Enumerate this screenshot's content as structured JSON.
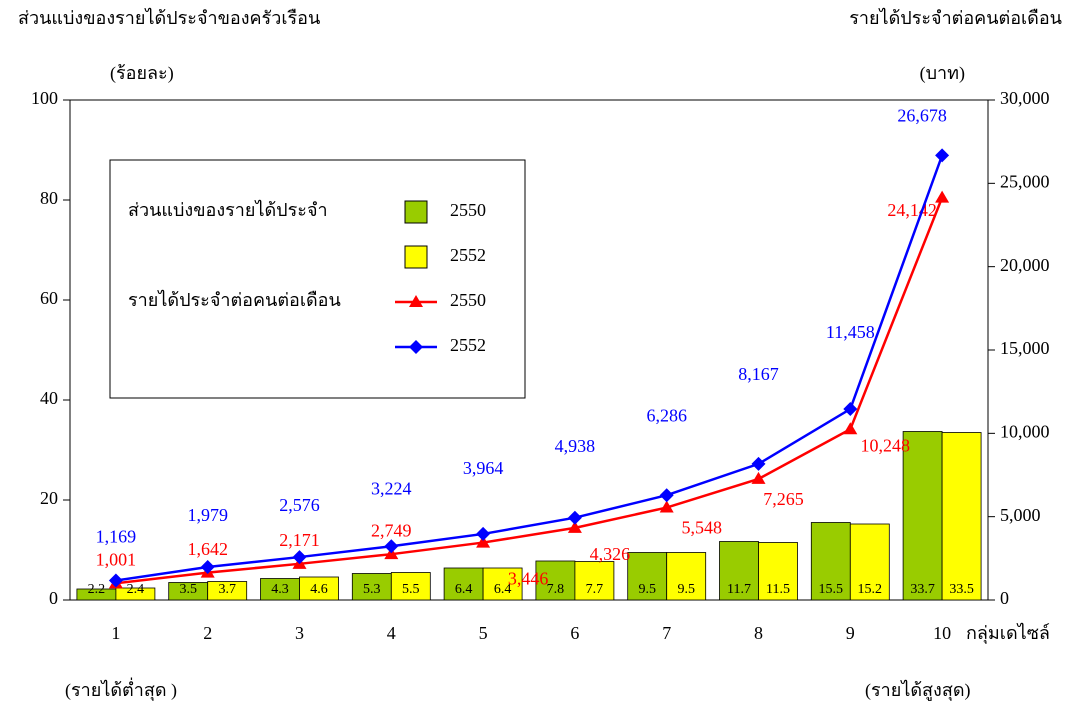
{
  "chart_data": {
    "type": "bar-line",
    "y_label": "ส่วนแบ่งของรายได้ประจำของครัวเรือน",
    "y_unit": "(ร้อยละ)",
    "y2_label": "รายได้ประจำต่อคนต่อเดือน",
    "y2_unit": "(บาท)",
    "x_label": "กลุ่มเดไซล์",
    "x_notes": [
      "(รายได้ต่ำสุด )",
      "(รายได้สูงสุด)"
    ],
    "legend_groups": [
      "ส่วนแบ่งของรายได้ประจำ",
      "รายได้ประจำต่อคนต่อเดือน"
    ],
    "categories": [
      "1",
      "2",
      "3",
      "4",
      "5",
      "6",
      "7",
      "8",
      "9",
      "10"
    ],
    "ylim": [
      0,
      100
    ],
    "yticks": [
      0,
      20,
      40,
      60,
      80,
      100
    ],
    "y2lim": [
      0,
      30000
    ],
    "y2ticks": [
      0,
      {
        "value": 5000,
        "label": "5,000"
      },
      {
        "value": 10000,
        "label": "10,000"
      },
      {
        "value": 15000,
        "label": "15,000"
      },
      {
        "value": 20000,
        "label": "20,000"
      },
      {
        "value": 25000,
        "label": "25,000"
      },
      {
        "value": 30000,
        "label": "30,000"
      }
    ],
    "series": [
      {
        "name": "2550",
        "kind": "bar",
        "color": "#99cc00",
        "values": [
          2.2,
          3.5,
          4.3,
          5.3,
          6.4,
          7.8,
          9.5,
          11.7,
          15.5,
          33.7
        ]
      },
      {
        "name": "2552",
        "kind": "bar",
        "color": "#ffff00",
        "values": [
          2.4,
          3.7,
          4.6,
          5.5,
          6.4,
          7.7,
          9.5,
          11.5,
          15.2,
          33.5
        ]
      },
      {
        "name": "2550",
        "kind": "line",
        "axis": "y2",
        "marker": "triangle",
        "color": "#ff0000",
        "values": [
          1001,
          1642,
          2171,
          2749,
          3446,
          4326,
          5548,
          7265,
          10248,
          24142
        ],
        "value_labels": [
          "1,001",
          "1,642",
          "2,171",
          "2,749",
          "3,446",
          "4,326",
          "5,548",
          "7,265",
          "10,248",
          "24,142"
        ]
      },
      {
        "name": "2552",
        "kind": "line",
        "axis": "y2",
        "marker": "diamond",
        "color": "#0000ff",
        "values": [
          1169,
          1979,
          2576,
          3224,
          3964,
          4938,
          6286,
          8167,
          11458,
          26678
        ],
        "value_labels": [
          "1,169",
          "1,979",
          "2,576",
          "3,224",
          "3,964",
          "4,938",
          "6,286",
          "8,167",
          "11,458",
          "26,678"
        ]
      }
    ]
  }
}
